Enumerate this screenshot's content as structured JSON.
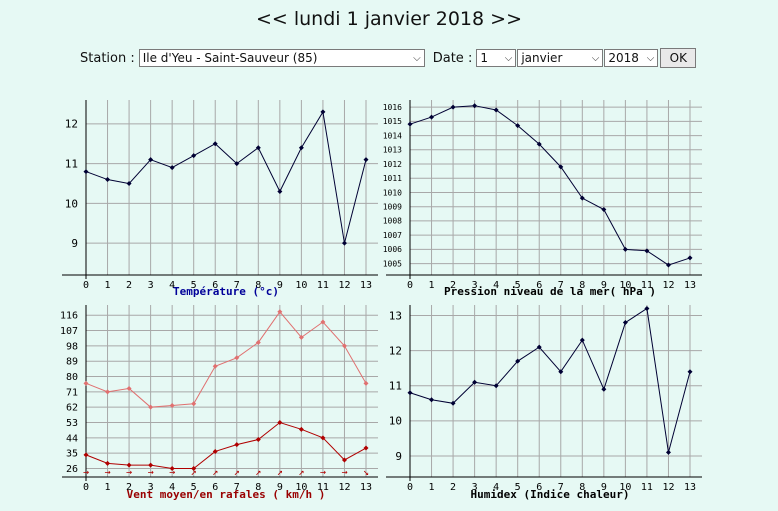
{
  "header": {
    "title": "lundi 1 janvier 2018",
    "prev": "<<",
    "next": ">>"
  },
  "form": {
    "station_label": "Station :",
    "station_value": "Ile d'Yeu - Saint-Sauveur (85)",
    "date_label": "Date :",
    "day_value": "1",
    "month_value": "janvier",
    "year_value": "2018",
    "ok_label": "OK"
  },
  "colors": {
    "background": "#e6f9f4",
    "grid": "#a8a8a8",
    "series_main": "#000033",
    "wind_mean": "#b00000",
    "wind_gust": "#e07070",
    "wind_label": "#990000",
    "axis_label": "#000099"
  },
  "chart_data": [
    {
      "type": "line",
      "xlabel": "Température (°c)",
      "x": [
        0,
        1,
        2,
        3,
        4,
        5,
        6,
        7,
        8,
        9,
        10,
        11,
        12,
        13
      ],
      "yticks": [
        9,
        10,
        11,
        12
      ],
      "ylim": [
        8.2,
        12.6
      ],
      "grid": true,
      "series": [
        {
          "values": [
            10.8,
            10.6,
            10.5,
            11.1,
            10.9,
            11.2,
            11.5,
            11.0,
            11.4,
            10.3,
            11.4,
            12.3,
            9.0,
            11.1
          ]
        }
      ]
    },
    {
      "type": "line",
      "xlabel": "Pression niveau de la mer( hPa )",
      "x": [
        0,
        1,
        2,
        3,
        4,
        5,
        6,
        7,
        8,
        9,
        10,
        11,
        12,
        13
      ],
      "yticks": [
        1005,
        1006,
        1007,
        1008,
        1009,
        1010,
        1011,
        1012,
        1013,
        1014,
        1015,
        1016
      ],
      "ylim": [
        1004.2,
        1016.5
      ],
      "grid": true,
      "series": [
        {
          "values": [
            1014.8,
            1015.3,
            1016.0,
            1016.1,
            1015.8,
            1014.7,
            1013.4,
            1011.8,
            1009.6,
            1008.8,
            1006.0,
            1005.9,
            1004.9,
            1005.4
          ]
        }
      ]
    },
    {
      "type": "line",
      "xlabel": "Vent moyen/en rafales ( km/h )",
      "x": [
        0,
        1,
        2,
        3,
        4,
        5,
        6,
        7,
        8,
        9,
        10,
        11,
        12,
        13
      ],
      "yticks": [
        26,
        35,
        44,
        53,
        62,
        71,
        80,
        89,
        98,
        107,
        116
      ],
      "ylim": [
        21,
        122
      ],
      "grid": true,
      "series": [
        {
          "values": [
            34,
            29,
            28,
            28,
            26,
            26,
            36,
            40,
            43,
            53,
            49,
            44,
            31,
            38
          ]
        },
        {
          "values": [
            76,
            71,
            73,
            62,
            63,
            64,
            86,
            91,
            100,
            118,
            103,
            112,
            98,
            76
          ]
        }
      ],
      "wind_direction_arrows": [
        "→",
        "→",
        "→",
        "→",
        "→",
        "↗",
        "↗",
        "↗",
        "↗",
        "↗",
        "↗",
        "→",
        "→",
        "↘"
      ]
    },
    {
      "type": "line",
      "xlabel": "Humidex (Indice chaleur)",
      "x": [
        0,
        1,
        2,
        3,
        4,
        5,
        6,
        7,
        8,
        9,
        10,
        11,
        12,
        13
      ],
      "yticks": [
        9,
        10,
        11,
        12,
        13
      ],
      "ylim": [
        8.4,
        13.3
      ],
      "grid": true,
      "series": [
        {
          "values": [
            10.8,
            10.6,
            10.5,
            11.1,
            11.0,
            11.7,
            12.1,
            11.4,
            12.3,
            10.9,
            12.8,
            13.2,
            9.1,
            11.4
          ]
        }
      ]
    }
  ]
}
